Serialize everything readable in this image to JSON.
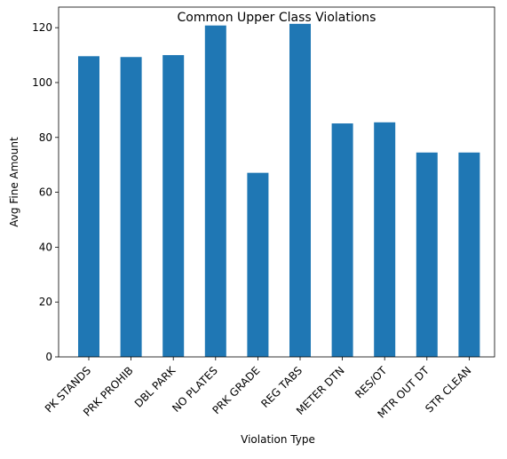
{
  "chart_data": {
    "type": "bar",
    "title": "Common Upper Class Violations",
    "xlabel": "Violation Type",
    "ylabel": "Avg Fine Amount",
    "categories": [
      "PK STANDS",
      "PRK PROHIB",
      "DBL PARK",
      "NO PLATES",
      "PRK GRADE",
      "REG TABS",
      "METER DTN",
      "RES/OT",
      "MTR OUT DT",
      "STR CLEAN"
    ],
    "values": [
      109.6,
      109.3,
      110.0,
      120.8,
      67.1,
      121.4,
      85.1,
      85.5,
      74.5,
      74.5
    ],
    "ylim": [
      0,
      127.5
    ],
    "yticks": [
      0,
      20,
      40,
      60,
      80,
      100,
      120
    ],
    "bar_color": "#1f77b4",
    "grid": false,
    "legend": "none"
  }
}
